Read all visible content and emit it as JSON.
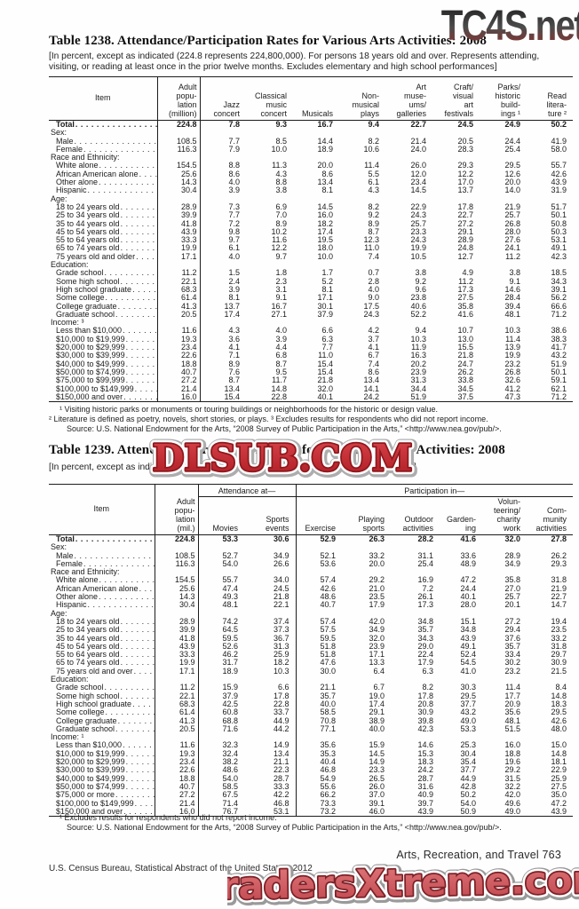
{
  "watermarks": {
    "top": "TC4S.net",
    "middle": "DLSUB.COM",
    "bottom": "TradersXtreme.com",
    "red": "#c4262c"
  },
  "page": {
    "footer_right": "Arts, Recreation, and Travel  763",
    "footer_left": "U.S. Census Bureau, Statistical Abstract of the United States: 2012"
  },
  "table1238": {
    "title": "Table 1238. Attendance/Participation Rates for Various Arts Activities: 2008",
    "headnote": "[In percent, except as indicated (224.8 represents 224,800,000). For persons 18 years old and over. Represents attending, visiting, or reading at least once in the prior twelve months. Excludes elementary and high school performances]",
    "headers": [
      "Item",
      "Adult\npopu-\nlation\n(million)",
      "Jazz\nconcert",
      "Classical\nmusic\nconcert",
      "Musicals",
      "Non-\nmusical\nplays",
      "Art\nmuse-\nums/\ngalleries",
      "Craft/\nvisual\nart\nfestivals",
      "Parks/\nhistoric\nbuild-\nings ¹",
      "Read\nlitera-\nture ²"
    ],
    "rows": [
      {
        "label": "Total",
        "type": "total",
        "values": [
          "224.8",
          "7.8",
          "9.3",
          "16.7",
          "9.4",
          "22.7",
          "24.5",
          "24.9",
          "50.2"
        ]
      },
      {
        "label": "Sex:",
        "type": "section"
      },
      {
        "label": "Male",
        "type": "data",
        "values": [
          "108.5",
          "7.7",
          "8.5",
          "14.4",
          "8.2",
          "21.4",
          "20.5",
          "24.4",
          "41.9"
        ]
      },
      {
        "label": "Female",
        "type": "data",
        "values": [
          "116.3",
          "7.9",
          "10.0",
          "18.9",
          "10.6",
          "24.0",
          "28.3",
          "25.4",
          "58.0"
        ]
      },
      {
        "label": "Race and Ethnicity:",
        "type": "section"
      },
      {
        "label": "White alone",
        "type": "data",
        "values": [
          "154.5",
          "8.8",
          "11.3",
          "20.0",
          "11.4",
          "26.0",
          "29.3",
          "29.5",
          "55.7"
        ]
      },
      {
        "label": "African American alone",
        "type": "data",
        "values": [
          "25.6",
          "8.6",
          "4.3",
          "8.6",
          "5.5",
          "12.0",
          "12.2",
          "12.6",
          "42.6"
        ]
      },
      {
        "label": "Other alone",
        "type": "data",
        "values": [
          "14.3",
          "4.0",
          "8.8",
          "13.4",
          "6.1",
          "23.4",
          "17.0",
          "20.0",
          "43.9"
        ]
      },
      {
        "label": "Hispanic",
        "type": "data",
        "values": [
          "30.4",
          "3.9",
          "3.8",
          "8.1",
          "4.3",
          "14.5",
          "13.7",
          "14.0",
          "31.9"
        ]
      },
      {
        "label": "Age:",
        "type": "section"
      },
      {
        "label": "18 to 24 years old",
        "type": "data",
        "values": [
          "28.9",
          "7.3",
          "6.9",
          "14.5",
          "8.2",
          "22.9",
          "17.8",
          "21.9",
          "51.7"
        ]
      },
      {
        "label": "25 to 34 years old",
        "type": "data",
        "values": [
          "39.9",
          "7.7",
          "7.0",
          "16.0",
          "9.2",
          "24.3",
          "22.7",
          "25.7",
          "50.1"
        ]
      },
      {
        "label": "35 to 44 years old",
        "type": "data",
        "values": [
          "41.8",
          "7.2",
          "8.9",
          "18.2",
          "8.9",
          "25.7",
          "27.2",
          "26.8",
          "50.8"
        ]
      },
      {
        "label": "45 to 54 years old",
        "type": "data",
        "values": [
          "43.9",
          "9.8",
          "10.2",
          "17.4",
          "8.7",
          "23.3",
          "29.1",
          "28.0",
          "50.3"
        ]
      },
      {
        "label": "55 to 64 years old",
        "type": "data",
        "values": [
          "33.3",
          "9.7",
          "11.6",
          "19.5",
          "12.3",
          "24.3",
          "28.9",
          "27.6",
          "53.1"
        ]
      },
      {
        "label": "65 to 74 years old",
        "type": "data",
        "values": [
          "19.9",
          "6.1",
          "12.2",
          "18.0",
          "11.0",
          "19.9",
          "24.8",
          "24.1",
          "49.1"
        ]
      },
      {
        "label": "75 years old and older",
        "type": "data",
        "values": [
          "17.1",
          "4.0",
          "9.7",
          "10.0",
          "7.4",
          "10.5",
          "12.7",
          "11.2",
          "42.3"
        ]
      },
      {
        "label": "Education:",
        "type": "section"
      },
      {
        "label": "Grade school",
        "type": "data",
        "values": [
          "11.2",
          "1.5",
          "1.8",
          "1.7",
          "0.7",
          "3.8",
          "4.9",
          "3.8",
          "18.5"
        ]
      },
      {
        "label": "Some high school",
        "type": "data",
        "values": [
          "22.1",
          "2.4",
          "2.3",
          "5.2",
          "2.8",
          "9.2",
          "11.2",
          "9.1",
          "34.3"
        ]
      },
      {
        "label": "High school graduate",
        "type": "data",
        "values": [
          "68.3",
          "3.9",
          "3.1",
          "8.1",
          "4.0",
          "9.6",
          "17.3",
          "14.6",
          "39.1"
        ]
      },
      {
        "label": "Some college",
        "type": "data",
        "values": [
          "61.4",
          "8.1",
          "9.1",
          "17.1",
          "9.0",
          "23.8",
          "27.5",
          "28.4",
          "56.2"
        ]
      },
      {
        "label": "College graduate",
        "type": "data",
        "values": [
          "41.3",
          "13.7",
          "16.7",
          "30.1",
          "17.5",
          "40.6",
          "35.8",
          "39.4",
          "66.6"
        ]
      },
      {
        "label": "Graduate school",
        "type": "data",
        "values": [
          "20.5",
          "17.4",
          "27.1",
          "37.9",
          "24.3",
          "52.2",
          "41.6",
          "48.1",
          "71.2"
        ]
      },
      {
        "label": "Income: ³",
        "type": "section"
      },
      {
        "label": "Less than $10,000",
        "type": "data",
        "values": [
          "11.6",
          "4.3",
          "4.0",
          "6.6",
          "4.2",
          "9.4",
          "10.7",
          "10.3",
          "38.6"
        ]
      },
      {
        "label": "$10,000 to $19,999",
        "type": "data",
        "values": [
          "19.3",
          "3.6",
          "3.9",
          "6.3",
          "3.7",
          "10.3",
          "13.0",
          "11.4",
          "38.3"
        ]
      },
      {
        "label": "$20,000 to $29,999",
        "type": "data",
        "values": [
          "23.4",
          "4.1",
          "4.4",
          "7.7",
          "4.1",
          "11.9",
          "15.5",
          "13.9",
          "41.7"
        ]
      },
      {
        "label": "$30,000 to $39,999",
        "type": "data",
        "values": [
          "22.6",
          "7.1",
          "6.8",
          "11.0",
          "6.7",
          "16.3",
          "21.8",
          "19.9",
          "43.2"
        ]
      },
      {
        "label": "$40,000 to $49,999",
        "type": "data",
        "values": [
          "18.8",
          "8.9",
          "8.7",
          "15.4",
          "7.4",
          "20.2",
          "24.7",
          "23.2",
          "51.9"
        ]
      },
      {
        "label": "$50,000 to $74,999",
        "type": "data",
        "values": [
          "40.7",
          "7.6",
          "9.5",
          "15.4",
          "8.6",
          "23.9",
          "26.2",
          "26.8",
          "50.1"
        ]
      },
      {
        "label": "$75,000 to $99,999",
        "type": "data",
        "values": [
          "27.2",
          "8.7",
          "11.7",
          "21.8",
          "13.4",
          "31.3",
          "33.8",
          "32.6",
          "59.1"
        ]
      },
      {
        "label": "$100,000 to $149,999",
        "type": "data",
        "values": [
          "21.4",
          "13.4",
          "14.8",
          "32.0",
          "14.1",
          "34.4",
          "34.5",
          "41.2",
          "62.1"
        ]
      },
      {
        "label": "$150,000 and over",
        "type": "data",
        "values": [
          "16.0",
          "15.4",
          "22.8",
          "40.1",
          "24.2",
          "51.9",
          "37.5",
          "47.3",
          "71.2"
        ]
      }
    ],
    "footnotes": [
      "¹ Visiting historic parks or monuments or touring buildings or neighborhoods for the historic or design value.",
      "² Literature is defined as poetry, novels, short stories, or plays. ³ Excludes results for respondents who did not report income.",
      "Source: U.S. National Endowment for the Arts, “2008 Survey of Public Participation in the Arts,” <http://www.nea.gov/pub/>."
    ]
  },
  "table1239": {
    "title": "Table 1239. Attendance/Participation Rates for Various Leisure Activities: 2008",
    "headnote": "[In percent, except as indicated (224.8 represents 224,800,000). See headnote, Table 1238]",
    "spanners": [
      "Attendance at—",
      "Participation in—"
    ],
    "headers": [
      "Item",
      "Adult\npopu-\nlation\n(mil.)",
      "Movies",
      "Sports\nevents",
      "Exercise",
      "Playing\nsports",
      "Outdoor\nactivities",
      "Garden-\ning",
      "Volun-\nteering/\ncharity\nwork",
      "Com-\nmunity\nactivities"
    ],
    "rows": [
      {
        "label": "Total",
        "type": "total",
        "values": [
          "224.8",
          "53.3",
          "30.6",
          "52.9",
          "26.3",
          "28.2",
          "41.6",
          "32.0",
          "27.8"
        ]
      },
      {
        "label": "Sex:",
        "type": "section"
      },
      {
        "label": "Male",
        "type": "data",
        "values": [
          "108.5",
          "52.7",
          "34.9",
          "52.1",
          "33.2",
          "31.1",
          "33.6",
          "28.9",
          "26.2"
        ]
      },
      {
        "label": "Female",
        "type": "data",
        "values": [
          "116.3",
          "54.0",
          "26.6",
          "53.6",
          "20.0",
          "25.4",
          "48.9",
          "34.9",
          "29.3"
        ]
      },
      {
        "label": "Race and Ethnicity:",
        "type": "section"
      },
      {
        "label": "White alone",
        "type": "data",
        "values": [
          "154.5",
          "55.7",
          "34.0",
          "57.4",
          "29.2",
          "16.9",
          "47.2",
          "35.8",
          "31.8"
        ]
      },
      {
        "label": "African American alone",
        "type": "data",
        "values": [
          "25.6",
          "47.4",
          "24.5",
          "42.6",
          "21.0",
          "7.2",
          "24.4",
          "27.0",
          "21.9"
        ]
      },
      {
        "label": "Other alone",
        "type": "data",
        "values": [
          "14.3",
          "49.3",
          "21.8",
          "48.6",
          "23.5",
          "26.1",
          "40.1",
          "25.7",
          "22.7"
        ]
      },
      {
        "label": "Hispanic",
        "type": "data",
        "values": [
          "30.4",
          "48.1",
          "22.1",
          "40.7",
          "17.9",
          "17.3",
          "28.0",
          "20.1",
          "14.7"
        ]
      },
      {
        "label": "Age:",
        "type": "section"
      },
      {
        "label": "18 to 24 years old",
        "type": "data",
        "values": [
          "28.9",
          "74.2",
          "37.4",
          "57.4",
          "42.0",
          "34.8",
          "15.1",
          "27.2",
          "19.4"
        ]
      },
      {
        "label": "25 to 34 years old",
        "type": "data",
        "values": [
          "39.9",
          "64.5",
          "37.3",
          "57.5",
          "34.9",
          "35.7",
          "34.8",
          "29.4",
          "23.5"
        ]
      },
      {
        "label": "35 to 44 years old",
        "type": "data",
        "values": [
          "41.8",
          "59.5",
          "36.7",
          "59.5",
          "32.0",
          "34.3",
          "43.9",
          "37.6",
          "33.2"
        ]
      },
      {
        "label": "45 to 54 years old",
        "type": "data",
        "values": [
          "43.9",
          "52.6",
          "31.3",
          "51.8",
          "23.9",
          "29.0",
          "49.1",
          "35.7",
          "31.8"
        ]
      },
      {
        "label": "55 to 64 years old",
        "type": "data",
        "values": [
          "33.3",
          "46.2",
          "25.9",
          "51.8",
          "17.1",
          "22.4",
          "52.4",
          "33.4",
          "29.7"
        ]
      },
      {
        "label": "65 to 74 years old",
        "type": "data",
        "values": [
          "19.9",
          "31.7",
          "18.2",
          "47.6",
          "13.3",
          "17.9",
          "54.5",
          "30.2",
          "30.9"
        ]
      },
      {
        "label": "75 years old and over",
        "type": "data",
        "values": [
          "17.1",
          "18.9",
          "10.3",
          "30.0",
          "6.4",
          "6.3",
          "41.0",
          "23.2",
          "21.5"
        ]
      },
      {
        "label": "Education:",
        "type": "section"
      },
      {
        "label": "Grade school",
        "type": "data",
        "values": [
          "11.2",
          "15.9",
          "6.6",
          "21.1",
          "6.7",
          "8.2",
          "30.3",
          "11.4",
          "8.4"
        ]
      },
      {
        "label": "Some high school",
        "type": "data",
        "values": [
          "22.1",
          "37.9",
          "17.8",
          "35.7",
          "19.0",
          "17.8",
          "29.5",
          "17.7",
          "14.8"
        ]
      },
      {
        "label": "High school graduate",
        "type": "data",
        "values": [
          "68.3",
          "42.5",
          "22.8",
          "40.0",
          "17.4",
          "20.8",
          "37.7",
          "20.9",
          "18.3"
        ]
      },
      {
        "label": "Some college",
        "type": "data",
        "values": [
          "61.4",
          "60.8",
          "33.7",
          "58.5",
          "29.1",
          "30.9",
          "43.2",
          "35.6",
          "29.5"
        ]
      },
      {
        "label": "College graduate",
        "type": "data",
        "values": [
          "41.3",
          "68.8",
          "44.9",
          "70.8",
          "38.9",
          "39.8",
          "49.0",
          "48.1",
          "42.6"
        ]
      },
      {
        "label": "Graduate school",
        "type": "data",
        "values": [
          "20.5",
          "71.6",
          "44.2",
          "77.1",
          "40.0",
          "42.3",
          "53.3",
          "51.5",
          "48.0"
        ]
      },
      {
        "label": "Income: ¹",
        "type": "section"
      },
      {
        "label": "Less than $10,000",
        "type": "data",
        "values": [
          "11.6",
          "32.3",
          "14.9",
          "35.6",
          "15.9",
          "14.6",
          "25.3",
          "16.0",
          "15.0"
        ]
      },
      {
        "label": "$10,000 to $19,999",
        "type": "data",
        "values": [
          "19.3",
          "32.4",
          "13.4",
          "35.3",
          "14.5",
          "15.3",
          "30.4",
          "18.8",
          "14.8"
        ]
      },
      {
        "label": "$20,000 to $29,999",
        "type": "data",
        "values": [
          "23.4",
          "38.2",
          "21.1",
          "40.4",
          "14.9",
          "18.3",
          "35.4",
          "19.6",
          "18.1"
        ]
      },
      {
        "label": "$30,000 to $39,999",
        "type": "data",
        "values": [
          "22.6",
          "48.6",
          "22.3",
          "46.8",
          "23.3",
          "24.2",
          "37.7",
          "29.2",
          "22.9"
        ]
      },
      {
        "label": "$40,000 to $49,999",
        "type": "data",
        "values": [
          "18.8",
          "54.0",
          "28.7",
          "54.9",
          "26.5",
          "28.7",
          "44.9",
          "31.5",
          "25.9"
        ]
      },
      {
        "label": "$50,000 to $74,999",
        "type": "data",
        "values": [
          "40.7",
          "58.5",
          "33.3",
          "55.6",
          "26.0",
          "31.6",
          "42.8",
          "32.2",
          "27.5"
        ]
      },
      {
        "label": "$75,000 or more",
        "type": "data",
        "values": [
          "27.2",
          "67.5",
          "42.2",
          "66.2",
          "37.0",
          "40.9",
          "50.2",
          "42.0",
          "35.0"
        ]
      },
      {
        "label": "$100,000 to $149,999",
        "type": "data",
        "values": [
          "21.4",
          "71.4",
          "46.8",
          "73.3",
          "39.1",
          "39.7",
          "54.0",
          "49.6",
          "47.2"
        ]
      },
      {
        "label": "$150,000 and over",
        "type": "data",
        "values": [
          "16.0",
          "76.7",
          "53.1",
          "73.2",
          "46.0",
          "43.9",
          "50.9",
          "49.0",
          "43.9"
        ]
      }
    ],
    "footnotes": [
      "¹ Excludes results for respondents who did not report income.",
      "Source: U.S. National Endowment for the Arts, “2008 Survey of Public Participation in the Arts,” <http://www.nea.gov/pub/>."
    ]
  }
}
